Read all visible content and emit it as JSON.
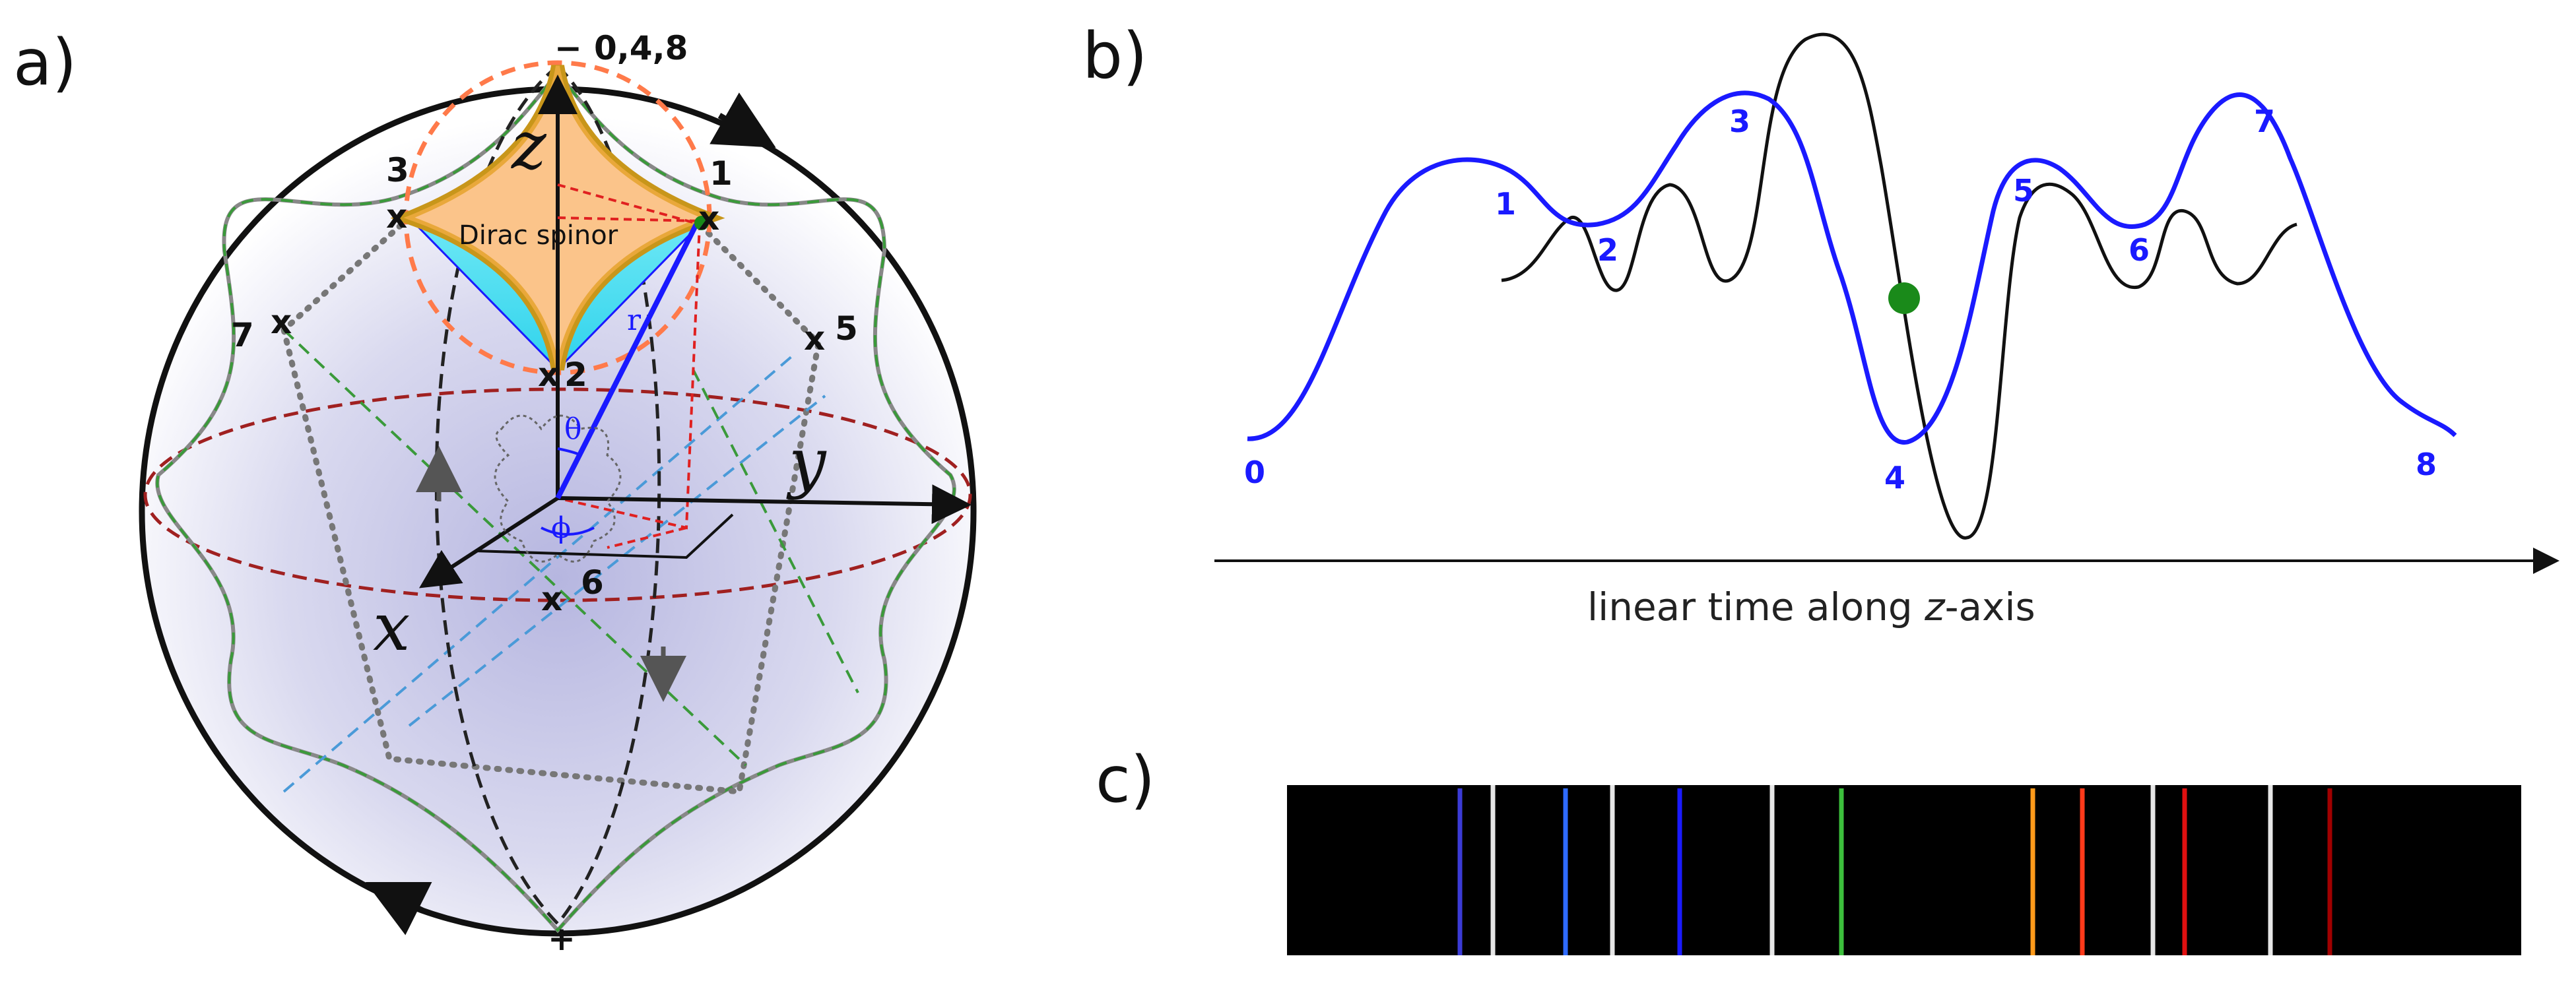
{
  "panel_a": {
    "label": "a)",
    "top_sign": "−",
    "top_label": "0,4,8",
    "bottom_sign": "+",
    "point_labels": {
      "p1": "1",
      "p2": "2",
      "p3": "3",
      "p5": "5",
      "p6": "6",
      "p7": "7"
    },
    "marker": "x",
    "axis_x": "x",
    "axis_y": "y",
    "axis_z": "z",
    "radius_label": "r",
    "theta": "θ",
    "phi": "ϕ",
    "spinor_label": "Dirac spinor"
  },
  "panel_b": {
    "label": "b)",
    "caption_prefix": "linear time along ",
    "caption_axis": "z",
    "caption_suffix": "-axis",
    "curve_labels": [
      "0",
      "1",
      "2",
      "3",
      "4",
      "5",
      "6",
      "7",
      "8"
    ],
    "colors": {
      "blue_curve": "#1a1aff",
      "black_curve": "#111111",
      "dot": "#1a8a1a"
    }
  },
  "panel_c": {
    "label": "c)",
    "line_colors": [
      "#3b3bd6",
      "#2f6bff",
      "#1a1aff",
      "#3cbf3c",
      "#ff9a1a",
      "#ff3a1a",
      "#e01010",
      "#a00000"
    ]
  }
}
